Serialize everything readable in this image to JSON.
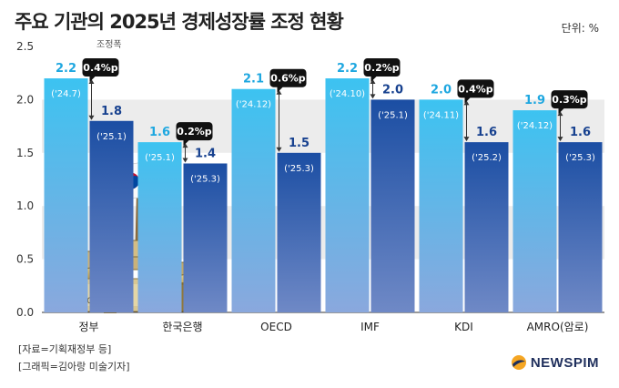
{
  "title": "주요 기관의 2025년 경제성장률 조정 현황",
  "unit_label": "단위: %",
  "adjust_legend": "조정폭",
  "source": "[자료=기획재정부 등]",
  "graphic_credit": "[그래픽=김아랑 미술기자]",
  "brand": "NEWSPIM",
  "colors": {
    "prev_bar_top": "#3cc3f1",
    "prev_bar_bottom": "#8aa8dd",
    "curr_bar_top": "#1b4ea3",
    "curr_bar_bottom": "#6f89c6",
    "prev_value": "#1ea7e0",
    "curr_value": "#17418f",
    "band": "#ececec"
  },
  "chart_data": {
    "type": "bar",
    "title": "주요 기관의 2025년 경제성장률 조정 현황",
    "ylim": [
      0,
      2.5
    ],
    "yticks": [
      "0.0",
      "0.5",
      "1.0",
      "1.5",
      "2.0",
      "2.5"
    ],
    "grid": "alternating horizontal bands",
    "categories": [
      "정부",
      "한국은행",
      "OECD",
      "IMF",
      "KDI",
      "AMRO(암로)"
    ],
    "series": [
      {
        "values": [
          2.2,
          1.6,
          2.1,
          2.2,
          2.0,
          1.9
        ],
        "value_labels": [
          "2.2",
          "1.6",
          "2.1",
          "2.2",
          "2.0",
          "1.9"
        ],
        "dates": [
          "('24.7)",
          "('25.1)",
          "('24.12)",
          "('24.10)",
          "('24.11)",
          "('24.12)"
        ]
      },
      {
        "values": [
          1.8,
          1.4,
          1.5,
          2.0,
          1.6,
          1.6
        ],
        "value_labels": [
          "1.8",
          "1.4",
          "1.5",
          "2.0",
          "1.6",
          "1.6"
        ],
        "dates": [
          "('25.1)",
          "('25.3)",
          "('25.3)",
          "('25.1)",
          "('25.2)",
          "('25.3)"
        ]
      }
    ],
    "adjustments": [
      "0.4%p",
      "0.2%p",
      "0.6%p",
      "0.2%p",
      "0.4%p",
      "0.3%p"
    ]
  }
}
